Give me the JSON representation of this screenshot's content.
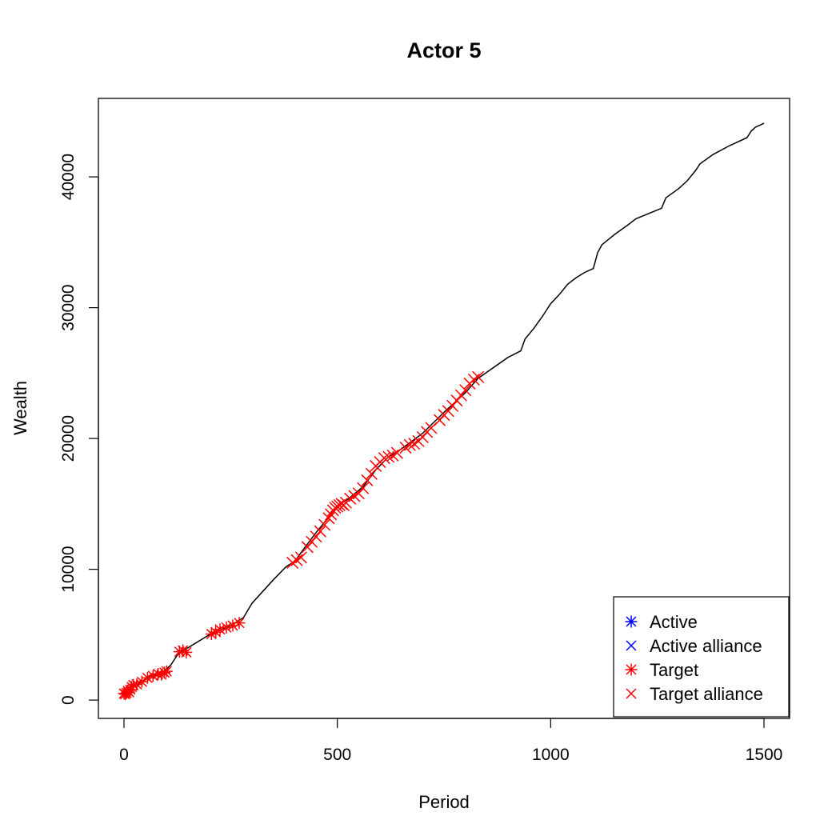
{
  "chart_data": {
    "type": "line",
    "title": "Actor 5",
    "xlabel": "Period",
    "ylabel": "Wealth",
    "xlim": [
      -60,
      1560
    ],
    "ylim": [
      -1400,
      46000
    ],
    "x_ticks": [
      0,
      500,
      1000,
      1500
    ],
    "x_tick_labels": [
      "0",
      "500",
      "1000",
      "1500"
    ],
    "y_ticks": [
      0,
      10000,
      20000,
      30000,
      40000
    ],
    "y_tick_labels": [
      "0",
      "10000",
      "20000",
      "30000",
      "40000"
    ],
    "grid": false,
    "legend_position": "bottom-right",
    "legend": [
      {
        "label": "Active",
        "symbol": "asterisk",
        "color": "#0000FF"
      },
      {
        "label": "Active alliance",
        "symbol": "cross",
        "color": "#0000FF"
      },
      {
        "label": "Target",
        "symbol": "asterisk",
        "color": "#FF0000"
      },
      {
        "label": "Target alliance",
        "symbol": "cross",
        "color": "#FF0000"
      }
    ],
    "line_color": "#000000",
    "series": [
      {
        "label": "Wealth",
        "x": [
          0,
          10,
          30,
          60,
          90,
          110,
          130,
          150,
          200,
          250,
          280,
          300,
          350,
          380,
          400,
          420,
          450,
          480,
          500,
          530,
          560,
          590,
          620,
          650,
          700,
          750,
          800,
          830,
          900,
          930,
          940,
          960,
          980,
          1000,
          1020,
          1040,
          1060,
          1080,
          1100,
          1110,
          1120,
          1150,
          1180,
          1200,
          1260,
          1270,
          1300,
          1320,
          1340,
          1350,
          1380,
          1420,
          1460,
          1470,
          1480,
          1500
        ],
        "y": [
          500,
          600,
          1200,
          1800,
          2100,
          2700,
          3700,
          4000,
          5000,
          5700,
          6300,
          7400,
          9200,
          10200,
          10600,
          11500,
          12800,
          14000,
          14800,
          15500,
          16300,
          17600,
          18600,
          19200,
          20400,
          22000,
          23500,
          24600,
          26200,
          26700,
          27600,
          28400,
          29300,
          30300,
          31000,
          31800,
          32300,
          32700,
          33000,
          34200,
          34800,
          35600,
          36300,
          36800,
          37600,
          38400,
          39100,
          39700,
          40500,
          41000,
          41700,
          42400,
          43000,
          43500,
          43800,
          44100
        ]
      },
      {
        "label": "Target",
        "marker": "asterisk",
        "color": "#FF0000",
        "x": [
          0,
          3,
          6,
          9,
          12,
          15,
          18,
          22,
          30,
          42,
          55,
          68,
          80,
          88,
          95,
          100,
          130,
          138,
          146,
          205,
          215,
          225,
          240,
          255,
          270
        ],
        "y": [
          500,
          450,
          550,
          700,
          600,
          800,
          1000,
          1150,
          1200,
          1400,
          1700,
          1850,
          2000,
          1950,
          2100,
          2200,
          3700,
          3800,
          3650,
          5050,
          5200,
          5400,
          5550,
          5700,
          5900
        ]
      },
      {
        "label": "Target alliance",
        "marker": "cross",
        "color": "#FF0000",
        "x": [
          395,
          405,
          415,
          430,
          440,
          450,
          460,
          470,
          480,
          485,
          490,
          495,
          500,
          505,
          510,
          515,
          520,
          530,
          540,
          550,
          560,
          570,
          580,
          590,
          600,
          610,
          620,
          630,
          640,
          660,
          670,
          680,
          690,
          700,
          710,
          720,
          740,
          750,
          760,
          770,
          780,
          790,
          800,
          810,
          820,
          830
        ],
        "y": [
          10500,
          10700,
          10900,
          11700,
          12100,
          12500,
          12900,
          13400,
          13900,
          14200,
          14500,
          14700,
          14800,
          14900,
          15000,
          14900,
          15100,
          15400,
          15600,
          15800,
          16200,
          16800,
          17300,
          17900,
          18200,
          18500,
          18600,
          18700,
          18900,
          19300,
          19500,
          19600,
          19800,
          20100,
          20500,
          20800,
          21400,
          21800,
          22100,
          22500,
          22900,
          23300,
          23700,
          24200,
          24500,
          24700
        ]
      }
    ]
  }
}
